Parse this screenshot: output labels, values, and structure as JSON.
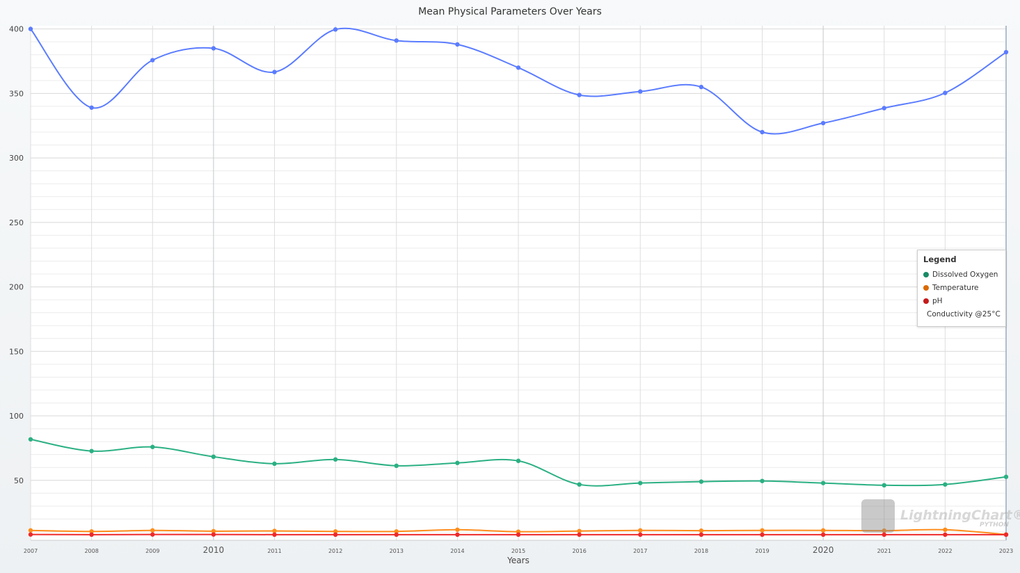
{
  "chart_data": {
    "type": "line",
    "title": "Mean Physical Parameters Over Years",
    "xlabel": "Years",
    "ylabel": "",
    "x": [
      2007,
      2008,
      2009,
      2010,
      2011,
      2012,
      2013,
      2014,
      2015,
      2016,
      2017,
      2018,
      2019,
      2020,
      2021,
      2022,
      2023
    ],
    "xlim": [
      2007,
      2023
    ],
    "ylim": [
      3.5,
      402.5
    ],
    "yticks": [
      50,
      100,
      150,
      200,
      250,
      300,
      350,
      400
    ],
    "grid": true,
    "smooth": true,
    "legend_title": "Legend",
    "legend_position": "right",
    "series": [
      {
        "name": "Dissolved Oxygen",
        "color": "#2bb083",
        "legend_color": "#1a8a66",
        "values": [
          81.8,
          72.7,
          75.9,
          68.3,
          62.9,
          66.2,
          61.3,
          63.5,
          65.1,
          46.8,
          47.9,
          49.0,
          49.5,
          47.9,
          46.2,
          46.8,
          52.7
        ]
      },
      {
        "name": "Temperature",
        "color": "#ff8c1a",
        "legend_color": "#d96a00",
        "values": [
          11.2,
          10.4,
          11.2,
          10.6,
          10.8,
          10.4,
          10.4,
          11.7,
          10.2,
          10.7,
          11.2,
          11.0,
          11.2,
          11.2,
          11.0,
          11.7,
          8.0
        ]
      },
      {
        "name": "pH",
        "color": "#ee2a2a",
        "legend_color": "#c41a1a",
        "values": [
          8.0,
          7.9,
          8.0,
          8.0,
          7.9,
          7.9,
          7.9,
          7.9,
          7.9,
          7.9,
          7.9,
          7.9,
          7.9,
          7.9,
          7.9,
          7.9,
          7.9
        ]
      },
      {
        "name": "Conductivity @25°C",
        "color": "#5b7cff",
        "legend_color": "#3650c0",
        "values": [
          400,
          339,
          375.8,
          385,
          366.6,
          399.6,
          391,
          388,
          370,
          348.8,
          351.5,
          355,
          320,
          327,
          338.6,
          350.4,
          382
        ]
      }
    ]
  },
  "watermark": {
    "text": "LightningChart®",
    "sub": "PYTHON"
  }
}
